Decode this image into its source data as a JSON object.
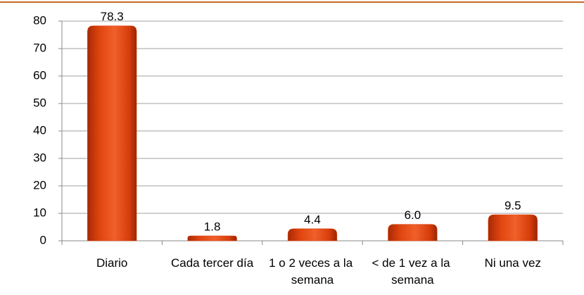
{
  "chart_data": {
    "type": "bar",
    "categories": [
      "Diario",
      "Cada tercer día",
      "1 o 2 veces a la semana",
      "< de 1 vez a la semana",
      "Ni una vez"
    ],
    "values": [
      78.3,
      1.8,
      4.4,
      6.0,
      9.5
    ],
    "value_labels": [
      "78.3",
      "1.8",
      "4.4",
      "6.0",
      "9.5"
    ],
    "color": "#e0450f",
    "ylim": [
      0,
      80
    ],
    "yticks": [
      0,
      10,
      20,
      30,
      40,
      50,
      60,
      70,
      80
    ],
    "grid": true
  }
}
